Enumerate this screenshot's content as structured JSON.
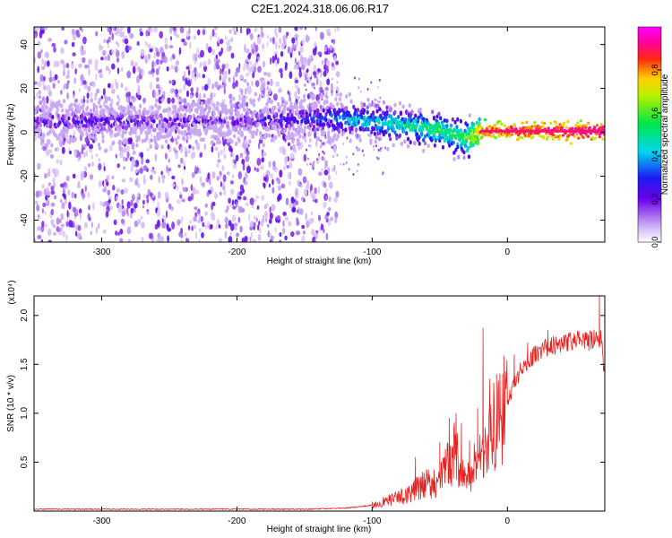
{
  "title": "C2E1.2024.318.06.06.R17",
  "chart_data": [
    {
      "type": "heatmap",
      "xlabel": "Height of straight line (km)",
      "ylabel": "Frequency (Hz)",
      "xlim": [
        -350,
        72
      ],
      "ylim": [
        -50,
        48
      ],
      "x_ticks": [
        -300,
        -200,
        -100,
        0
      ],
      "y_ticks": [
        -40,
        -20,
        0,
        20,
        40
      ],
      "colorbar": {
        "label": "Normalized spectral amplitude",
        "range": [
          0,
          1
        ],
        "ticks": [
          0.0,
          0.2,
          0.4,
          0.6,
          0.8
        ],
        "colormap": "rainbow (white-violet-blue-cyan-green-yellow-red-magenta)"
      },
      "signal_track": {
        "description_points_x": [
          -350,
          -300,
          -250,
          -200,
          -150,
          -125,
          -100,
          -75,
          -50,
          -30,
          -20,
          0,
          20,
          72
        ],
        "center_frequency": [
          5,
          5,
          5,
          5,
          6,
          6,
          5,
          3,
          1,
          -3,
          0,
          1,
          0.5,
          0.5
        ],
        "amplitude": [
          0.2,
          0.25,
          0.2,
          0.2,
          0.3,
          0.4,
          0.45,
          0.5,
          0.55,
          0.6,
          0.8,
          0.9,
          0.9,
          0.95
        ]
      }
    },
    {
      "type": "line",
      "xlabel": "Height of straight line (km)",
      "ylabel": "SNR (10 * v/v)",
      "y_multiplier": "(x10⁴)",
      "xlim": [
        -350,
        72
      ],
      "ylim": [
        0,
        2.2
      ],
      "x_ticks": [
        -300,
        -200,
        -100,
        0
      ],
      "y_ticks": [
        0.5,
        1.0,
        1.5,
        2.0
      ],
      "series": [
        {
          "color": "#e8211f",
          "x": [
            -350,
            -300,
            -250,
            -200,
            -150,
            -120,
            -100,
            -90,
            -80,
            -70,
            -60,
            -50,
            -45,
            -40,
            -35,
            -30,
            -25,
            -20,
            -15,
            -10,
            -5,
            0,
            5,
            10,
            20,
            30,
            40,
            50,
            60,
            65,
            70,
            72
          ],
          "values": [
            0.02,
            0.02,
            0.02,
            0.02,
            0.02,
            0.03,
            0.06,
            0.1,
            0.14,
            0.2,
            0.28,
            0.3,
            0.45,
            0.6,
            0.5,
            0.3,
            0.45,
            0.6,
            0.7,
            0.85,
            0.95,
            1.1,
            1.3,
            1.45,
            1.6,
            1.68,
            1.72,
            1.74,
            1.74,
            1.75,
            1.76,
            1.3
          ],
          "spikes": [
            {
              "x": -68,
              "y": 0.55
            },
            {
              "x": -50,
              "y": 0.7
            },
            {
              "x": -43,
              "y": 0.95
            },
            {
              "x": -38,
              "y": 1.0
            },
            {
              "x": -34,
              "y": 0.9
            },
            {
              "x": -28,
              "y": 0.72
            },
            {
              "x": -22,
              "y": 1.05
            },
            {
              "x": -18,
              "y": 1.87
            },
            {
              "x": -13,
              "y": 1.35
            },
            {
              "x": -8,
              "y": 1.4
            },
            {
              "x": 5,
              "y": 1.6
            },
            {
              "x": 15,
              "y": 1.72
            },
            {
              "x": 30,
              "y": 1.85
            },
            {
              "x": 68,
              "y": 2.2
            }
          ]
        }
      ]
    }
  ]
}
